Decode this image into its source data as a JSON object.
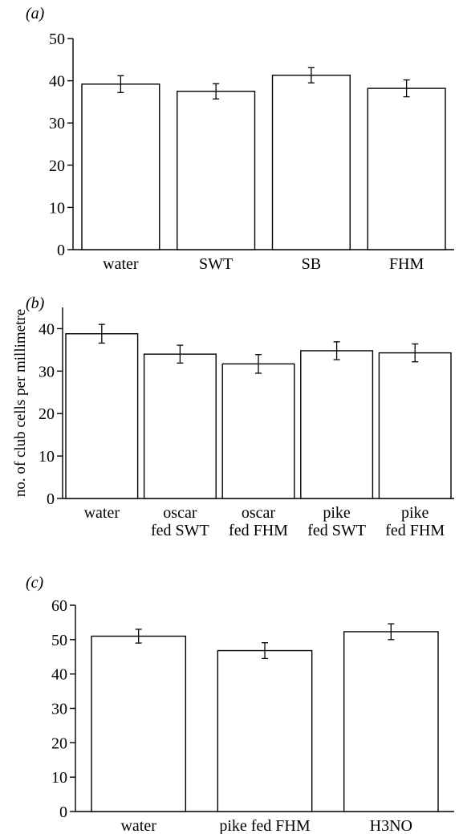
{
  "ylabel": "no. of club cells per millimetre",
  "chart_data": [
    {
      "type": "bar",
      "panel_label": "(a)",
      "categories": [
        [
          "water"
        ],
        [
          "SWT"
        ],
        [
          "SB"
        ],
        [
          "FHM"
        ]
      ],
      "values": [
        39.2,
        37.5,
        41.3,
        38.2
      ],
      "errors": [
        2.0,
        1.8,
        1.8,
        2.0
      ],
      "ylim": [
        0,
        50
      ],
      "yticks": [
        0,
        10,
        20,
        30,
        40,
        50
      ]
    },
    {
      "type": "bar",
      "panel_label": "(b)",
      "categories": [
        [
          "water"
        ],
        [
          "oscar",
          "fed SWT"
        ],
        [
          "oscar",
          "fed FHM"
        ],
        [
          "pike",
          "fed SWT"
        ],
        [
          "pike",
          "fed FHM"
        ]
      ],
      "values": [
        38.8,
        34.0,
        31.7,
        34.8,
        34.3
      ],
      "errors": [
        2.2,
        2.1,
        2.2,
        2.1,
        2.1
      ],
      "ylim": [
        0,
        45
      ],
      "yticks": [
        0,
        10,
        20,
        30,
        40
      ]
    },
    {
      "type": "bar",
      "panel_label": "(c)",
      "categories": [
        [
          "water"
        ],
        [
          "pike fed FHM"
        ],
        [
          "H3NO"
        ]
      ],
      "values": [
        51.0,
        46.8,
        52.3
      ],
      "errors": [
        2.0,
        2.3,
        2.3
      ],
      "ylim": [
        0,
        60
      ],
      "yticks": [
        0,
        10,
        20,
        30,
        40,
        50,
        60
      ]
    }
  ]
}
